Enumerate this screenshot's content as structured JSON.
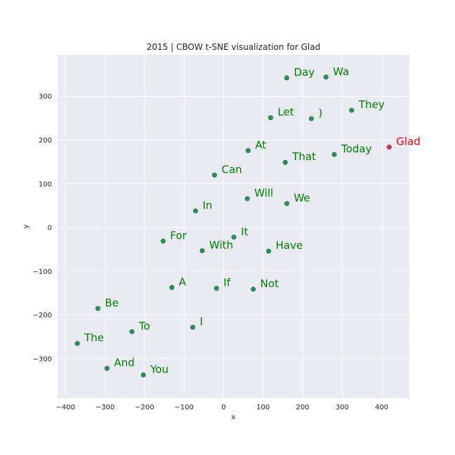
{
  "chart_data": {
    "type": "scatter",
    "title": "2015 | CBOW t-SNE visualization for Glad",
    "xlabel": "x",
    "ylabel": "y",
    "xlim": [
      -420,
      470
    ],
    "ylim": [
      -390,
      395
    ],
    "xticks": [
      -400,
      -300,
      -200,
      -100,
      0,
      100,
      200,
      300,
      400
    ],
    "xtick_labels": [
      "−400",
      "−300",
      "−200",
      "−100",
      "0",
      "100",
      "200",
      "300",
      "400"
    ],
    "yticks": [
      -300,
      -200,
      -100,
      0,
      100,
      200,
      300
    ],
    "ytick_labels": [
      "−300",
      "−200",
      "−100",
      "0",
      "100",
      "200",
      "300"
    ],
    "grid": true,
    "background": "#eaeaf2",
    "point_color": "#2e8b57",
    "label_color": "#008000",
    "highlight_point_color": "#c0404a",
    "highlight_label_color": "#ff0000",
    "points": [
      {
        "label": "Day",
        "x": 160,
        "y": 342
      },
      {
        "label": "Wa",
        "x": 259,
        "y": 344
      },
      {
        "label": "Let",
        "x": 119,
        "y": 251
      },
      {
        "label": ")",
        "x": 222,
        "y": 249
      },
      {
        "label": "They",
        "x": 324,
        "y": 268
      },
      {
        "label": "At",
        "x": 62,
        "y": 176
      },
      {
        "label": "That",
        "x": 156,
        "y": 149
      },
      {
        "label": "Today",
        "x": 280,
        "y": 167
      },
      {
        "label": "Glad",
        "x": 419,
        "y": 184,
        "highlight": true
      },
      {
        "label": "Can",
        "x": -23,
        "y": 120
      },
      {
        "label": "Will",
        "x": 60,
        "y": 66
      },
      {
        "label": "We",
        "x": 160,
        "y": 55
      },
      {
        "label": "In",
        "x": -71,
        "y": 38
      },
      {
        "label": "For",
        "x": -153,
        "y": -31
      },
      {
        "label": "It",
        "x": 26,
        "y": -22
      },
      {
        "label": "With",
        "x": -54,
        "y": -53
      },
      {
        "label": "Have",
        "x": 114,
        "y": -54
      },
      {
        "label": "A",
        "x": -131,
        "y": -137
      },
      {
        "label": "If",
        "x": -18,
        "y": -139
      },
      {
        "label": "Not",
        "x": 75,
        "y": -141
      },
      {
        "label": "Be",
        "x": -318,
        "y": -185
      },
      {
        "label": "To",
        "x": -232,
        "y": -238
      },
      {
        "label": "I",
        "x": -78,
        "y": -228
      },
      {
        "label": "The",
        "x": -370,
        "y": -265
      },
      {
        "label": "And",
        "x": -295,
        "y": -322
      },
      {
        "label": "You",
        "x": -203,
        "y": -337
      }
    ]
  }
}
